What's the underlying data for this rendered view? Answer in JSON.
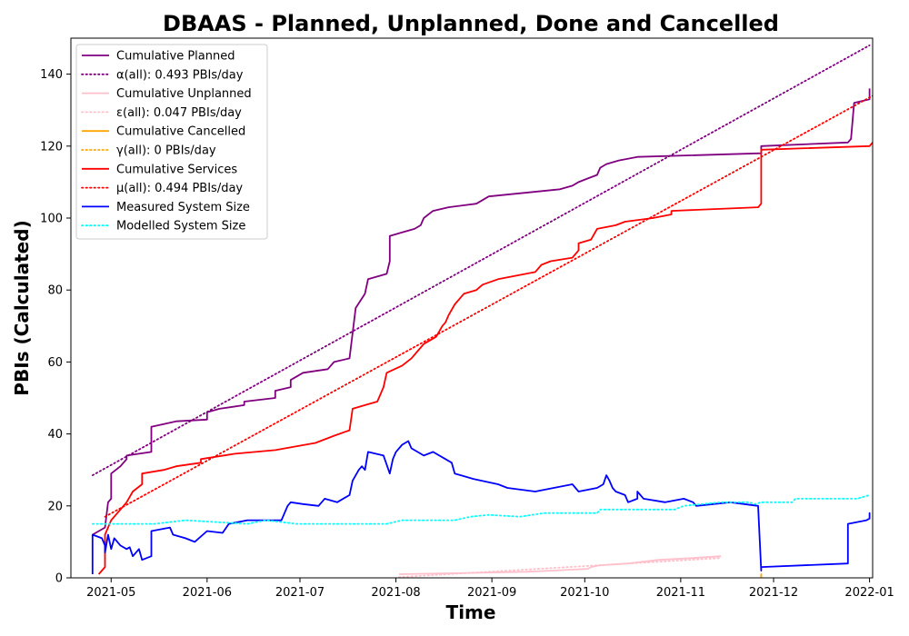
{
  "chart_data": {
    "type": "line",
    "title": "DBAAS - Planned, Unplanned, Done  and Cancelled",
    "xlabel": "Time",
    "ylabel": "PBIs (Calculated)",
    "xlim": [
      "2021-04-18",
      "2022-01-02"
    ],
    "ylim": [
      0,
      150
    ],
    "grid": false,
    "legend_position": "top-left",
    "x_ticks": [
      "2021-05",
      "2021-06",
      "2021-07",
      "2021-08",
      "2021-09",
      "2021-10",
      "2021-11",
      "2021-12",
      "2022-01"
    ],
    "y_ticks": [
      0,
      20,
      40,
      60,
      80,
      100,
      120,
      140
    ],
    "series": [
      {
        "name": "Cumulative Planned",
        "color": "#800080",
        "style": "solid",
        "points": [
          [
            "2021-04-25",
            12
          ],
          [
            "2021-04-29",
            14
          ],
          [
            "2021-04-30",
            21
          ],
          [
            "2021-05-01",
            22
          ],
          [
            "2021-05-01",
            29
          ],
          [
            "2021-05-04",
            31
          ],
          [
            "2021-05-06",
            33
          ],
          [
            "2021-05-06",
            34
          ],
          [
            "2021-05-14",
            35
          ],
          [
            "2021-05-14",
            42
          ],
          [
            "2021-05-22",
            43.5
          ],
          [
            "2021-06-01",
            44
          ],
          [
            "2021-06-01",
            46
          ],
          [
            "2021-06-05",
            47
          ],
          [
            "2021-06-13",
            48
          ],
          [
            "2021-06-13",
            49
          ],
          [
            "2021-06-23",
            50
          ],
          [
            "2021-06-23",
            52
          ],
          [
            "2021-06-28",
            53
          ],
          [
            "2021-06-28",
            55
          ],
          [
            "2021-07-02",
            57
          ],
          [
            "2021-07-10",
            58
          ],
          [
            "2021-07-12",
            60
          ],
          [
            "2021-07-17",
            61
          ],
          [
            "2021-07-18",
            68
          ],
          [
            "2021-07-19",
            75
          ],
          [
            "2021-07-22",
            79
          ],
          [
            "2021-07-23",
            83
          ],
          [
            "2021-07-29",
            84.5
          ],
          [
            "2021-07-30",
            88
          ],
          [
            "2021-07-30",
            95
          ],
          [
            "2021-08-03",
            96
          ],
          [
            "2021-08-07",
            97
          ],
          [
            "2021-08-09",
            98
          ],
          [
            "2021-08-10",
            100
          ],
          [
            "2021-08-13",
            102
          ],
          [
            "2021-08-18",
            103
          ],
          [
            "2021-08-27",
            104
          ],
          [
            "2021-08-29",
            105
          ],
          [
            "2021-08-31",
            106
          ],
          [
            "2021-09-23",
            108
          ],
          [
            "2021-09-27",
            109
          ],
          [
            "2021-09-29",
            110
          ],
          [
            "2021-10-02",
            111
          ],
          [
            "2021-10-05",
            112
          ],
          [
            "2021-10-06",
            114
          ],
          [
            "2021-10-08",
            115
          ],
          [
            "2021-10-12",
            116
          ],
          [
            "2021-10-18",
            117
          ],
          [
            "2021-11-27",
            118
          ],
          [
            "2021-11-27",
            120
          ],
          [
            "2021-12-25",
            121
          ],
          [
            "2021-12-26",
            122
          ],
          [
            "2021-12-27",
            132
          ],
          [
            "2022-01-01",
            133
          ],
          [
            "2022-01-01",
            136
          ]
        ]
      },
      {
        "name": "α(all): 0.493 PBIs/day",
        "color": "#800080",
        "style": "dotted",
        "points": [
          [
            "2021-04-25",
            28.5
          ],
          [
            "2022-01-01",
            148
          ]
        ]
      },
      {
        "name": "Cumulative Unplanned",
        "color": "#ffc0cb",
        "style": "solid",
        "points": [
          [
            "2021-08-02",
            1
          ],
          [
            "2021-08-20",
            1.3
          ],
          [
            "2021-09-12",
            1.7
          ],
          [
            "2021-09-20",
            2
          ],
          [
            "2021-10-02",
            2.5
          ],
          [
            "2021-10-03",
            3
          ],
          [
            "2021-10-06",
            3.5
          ],
          [
            "2021-10-15",
            4
          ],
          [
            "2021-10-25",
            5
          ],
          [
            "2021-11-05",
            5.5
          ],
          [
            "2021-11-14",
            6
          ]
        ]
      },
      {
        "name": "ε(all): 0.047 PBIs/day",
        "color": "#ffc0cb",
        "style": "dotted",
        "points": [
          [
            "2021-08-02",
            0.2
          ],
          [
            "2021-11-14",
            5.5
          ]
        ]
      },
      {
        "name": "Cumulative Cancelled",
        "color": "#ffa500",
        "style": "solid",
        "points": [
          [
            "2021-11-27",
            0
          ],
          [
            "2021-11-27",
            1
          ]
        ]
      },
      {
        "name": "γ(all): 0 PBIs/day",
        "color": "#ffa500",
        "style": "dotted",
        "points": [
          [
            "2021-11-27",
            1
          ],
          [
            "2021-11-27",
            1
          ]
        ]
      },
      {
        "name": "Cumulative Services",
        "color": "#ff0000",
        "style": "solid",
        "points": [
          [
            "2021-04-27",
            1
          ],
          [
            "2021-04-29",
            3
          ],
          [
            "2021-04-29",
            12
          ],
          [
            "2021-05-01",
            16
          ],
          [
            "2021-05-04",
            19
          ],
          [
            "2021-05-06",
            21
          ],
          [
            "2021-05-08",
            24
          ],
          [
            "2021-05-11",
            26
          ],
          [
            "2021-05-11",
            29
          ],
          [
            "2021-05-18",
            30
          ],
          [
            "2021-05-22",
            31
          ],
          [
            "2021-05-30",
            32
          ],
          [
            "2021-05-30",
            33
          ],
          [
            "2021-06-10",
            34.5
          ],
          [
            "2021-06-23",
            35.5
          ],
          [
            "2021-07-06",
            37.5
          ],
          [
            "2021-07-12",
            39.5
          ],
          [
            "2021-07-17",
            41
          ],
          [
            "2021-07-18",
            47
          ],
          [
            "2021-07-22",
            48
          ],
          [
            "2021-07-26",
            49
          ],
          [
            "2021-07-28",
            53
          ],
          [
            "2021-07-29",
            57
          ],
          [
            "2021-08-03",
            59
          ],
          [
            "2021-08-06",
            61
          ],
          [
            "2021-08-08",
            63
          ],
          [
            "2021-08-10",
            65
          ],
          [
            "2021-08-14",
            67
          ],
          [
            "2021-08-16",
            70
          ],
          [
            "2021-08-17",
            71
          ],
          [
            "2021-08-18",
            73
          ],
          [
            "2021-08-20",
            76
          ],
          [
            "2021-08-22",
            78
          ],
          [
            "2021-08-23",
            79
          ],
          [
            "2021-08-27",
            80
          ],
          [
            "2021-08-29",
            81.5
          ],
          [
            "2021-09-03",
            83
          ],
          [
            "2021-09-15",
            85
          ],
          [
            "2021-09-17",
            87
          ],
          [
            "2021-09-20",
            88
          ],
          [
            "2021-09-27",
            89
          ],
          [
            "2021-09-29",
            91
          ],
          [
            "2021-09-29",
            93
          ],
          [
            "2021-10-03",
            94
          ],
          [
            "2021-10-05",
            97
          ],
          [
            "2021-10-11",
            98
          ],
          [
            "2021-10-14",
            99
          ],
          [
            "2021-10-23",
            100
          ],
          [
            "2021-10-29",
            101
          ],
          [
            "2021-10-29",
            102
          ],
          [
            "2021-11-26",
            103
          ],
          [
            "2021-11-27",
            104
          ],
          [
            "2021-11-27",
            119
          ],
          [
            "2022-01-01",
            120
          ],
          [
            "2022-01-02",
            121
          ]
        ]
      },
      {
        "name": "μ(all): 0.494 PBIs/day",
        "color": "#ff0000",
        "style": "dotted",
        "points": [
          [
            "2021-04-29",
            17
          ],
          [
            "2022-01-02",
            134
          ]
        ]
      },
      {
        "name": "Measured System Size",
        "color": "#0000ff",
        "style": "solid",
        "points": [
          [
            "2021-04-25",
            1
          ],
          [
            "2021-04-25",
            12
          ],
          [
            "2021-04-28",
            11
          ],
          [
            "2021-04-29",
            9
          ],
          [
            "2021-04-29",
            7
          ],
          [
            "2021-04-30",
            12
          ],
          [
            "2021-05-01",
            8
          ],
          [
            "2021-05-02",
            11
          ],
          [
            "2021-05-04",
            9
          ],
          [
            "2021-05-06",
            8
          ],
          [
            "2021-05-07",
            8.5
          ],
          [
            "2021-05-08",
            6
          ],
          [
            "2021-05-10",
            8
          ],
          [
            "2021-05-11",
            5
          ],
          [
            "2021-05-14",
            6
          ],
          [
            "2021-05-14",
            13
          ],
          [
            "2021-05-20",
            14
          ],
          [
            "2021-05-21",
            12
          ],
          [
            "2021-05-25",
            11
          ],
          [
            "2021-05-28",
            10
          ],
          [
            "2021-06-01",
            13
          ],
          [
            "2021-06-06",
            12.5
          ],
          [
            "2021-06-08",
            15
          ],
          [
            "2021-06-14",
            16
          ],
          [
            "2021-06-25",
            16
          ],
          [
            "2021-06-27",
            20
          ],
          [
            "2021-06-28",
            21
          ],
          [
            "2021-07-02",
            20.5
          ],
          [
            "2021-07-07",
            20
          ],
          [
            "2021-07-09",
            22
          ],
          [
            "2021-07-13",
            21
          ],
          [
            "2021-07-17",
            23
          ],
          [
            "2021-07-18",
            27
          ],
          [
            "2021-07-20",
            30
          ],
          [
            "2021-07-21",
            31
          ],
          [
            "2021-07-22",
            30
          ],
          [
            "2021-07-23",
            35
          ],
          [
            "2021-07-28",
            34
          ],
          [
            "2021-07-30",
            29
          ],
          [
            "2021-07-31",
            33
          ],
          [
            "2021-08-01",
            35
          ],
          [
            "2021-08-03",
            37
          ],
          [
            "2021-08-05",
            38
          ],
          [
            "2021-08-06",
            36
          ],
          [
            "2021-08-08",
            35
          ],
          [
            "2021-08-10",
            34
          ],
          [
            "2021-08-13",
            35
          ],
          [
            "2021-08-17",
            33
          ],
          [
            "2021-08-19",
            32
          ],
          [
            "2021-08-20",
            29
          ],
          [
            "2021-08-24",
            28
          ],
          [
            "2021-08-26",
            27.5
          ],
          [
            "2021-09-03",
            26
          ],
          [
            "2021-09-06",
            25
          ],
          [
            "2021-09-15",
            24
          ],
          [
            "2021-09-21",
            25
          ],
          [
            "2021-09-27",
            26
          ],
          [
            "2021-09-29",
            24
          ],
          [
            "2021-10-05",
            25
          ],
          [
            "2021-10-07",
            26
          ],
          [
            "2021-10-08",
            28.5
          ],
          [
            "2021-10-09",
            27
          ],
          [
            "2021-10-10",
            25
          ],
          [
            "2021-10-11",
            24
          ],
          [
            "2021-10-14",
            23
          ],
          [
            "2021-10-15",
            21
          ],
          [
            "2021-10-18",
            22
          ],
          [
            "2021-10-18",
            24
          ],
          [
            "2021-10-20",
            22
          ],
          [
            "2021-10-27",
            21
          ],
          [
            "2021-11-02",
            22
          ],
          [
            "2021-11-05",
            21
          ],
          [
            "2021-11-06",
            20
          ],
          [
            "2021-11-17",
            21
          ],
          [
            "2021-11-26",
            20
          ],
          [
            "2021-11-27",
            2
          ],
          [
            "2021-11-27",
            3
          ],
          [
            "2021-12-25",
            4
          ],
          [
            "2021-12-25",
            15
          ],
          [
            "2021-12-31",
            16
          ],
          [
            "2022-01-01",
            16.5
          ],
          [
            "2022-01-01",
            18
          ],
          [
            "2022-01-01",
            17
          ]
        ]
      },
      {
        "name": "Modelled System Size",
        "color": "#00ffff",
        "style": "dotted",
        "points": [
          [
            "2021-04-25",
            15
          ],
          [
            "2021-05-15",
            15
          ],
          [
            "2021-05-25",
            16
          ],
          [
            "2021-06-14",
            15
          ],
          [
            "2021-06-20",
            16
          ],
          [
            "2021-06-30",
            15
          ],
          [
            "2021-07-29",
            15
          ],
          [
            "2021-08-03",
            16
          ],
          [
            "2021-08-20",
            16
          ],
          [
            "2021-08-25",
            17
          ],
          [
            "2021-08-31",
            17.5
          ],
          [
            "2021-09-10",
            17
          ],
          [
            "2021-09-18",
            18
          ],
          [
            "2021-10-05",
            18
          ],
          [
            "2021-10-06",
            19
          ],
          [
            "2021-10-30",
            19
          ],
          [
            "2021-11-02",
            20
          ],
          [
            "2021-11-14",
            21
          ],
          [
            "2021-11-23",
            21
          ],
          [
            "2021-11-25",
            20.5
          ],
          [
            "2021-11-27",
            21
          ],
          [
            "2021-12-07",
            21
          ],
          [
            "2021-12-08",
            22
          ],
          [
            "2021-12-28",
            22
          ],
          [
            "2022-01-01",
            23
          ]
        ]
      }
    ]
  }
}
